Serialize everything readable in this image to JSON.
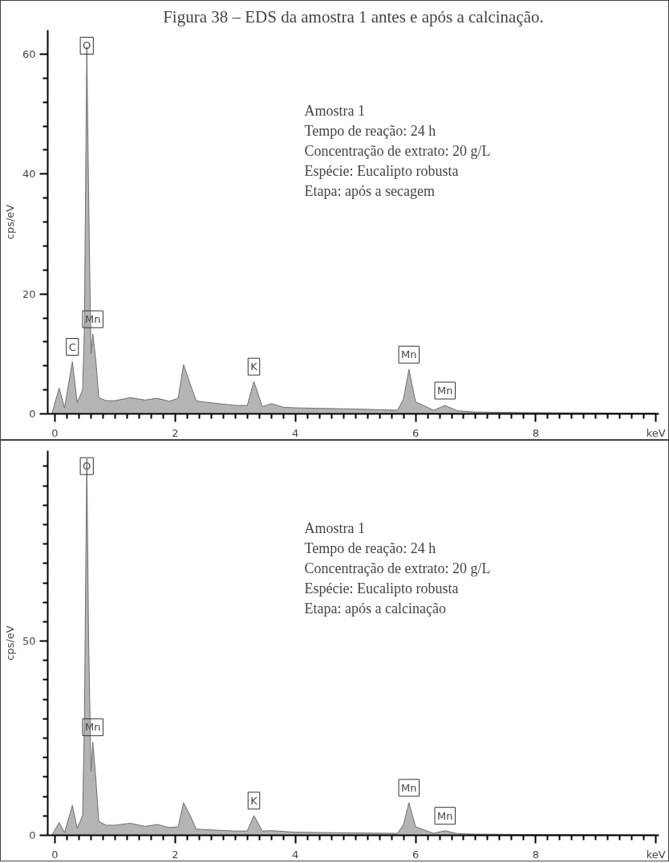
{
  "chart_data": [
    {
      "type": "area",
      "title": "Figura 38 – EDS da amostra 1 antes e após a calcinação.",
      "ylabel": "cps/eV",
      "x": [
        -0.05,
        0.07,
        0.16,
        0.29,
        0.37,
        0.46,
        0.49,
        0.53,
        0.56,
        0.6,
        0.63,
        0.68,
        0.73,
        0.85,
        1.0,
        1.25,
        1.5,
        1.7,
        1.9,
        2.05,
        2.14,
        2.25,
        2.35,
        2.45,
        3.0,
        3.2,
        3.31,
        3.45,
        3.6,
        3.8,
        4.0,
        5.0,
        5.7,
        5.8,
        5.89,
        6.0,
        6.3,
        6.49,
        6.7,
        7.0,
        8.0,
        10.0
      ],
      "series": [
        {
          "color": "#b4b4b4",
          "values": [
            0,
            4.3,
            1.0,
            8.7,
            1.9,
            4,
            14.2,
            61.2,
            37,
            10,
            13.3,
            8.9,
            2.7,
            2.2,
            2.2,
            2.7,
            2.3,
            2.6,
            2.1,
            2.6,
            8.2,
            5,
            2.2,
            2.0,
            1.4,
            1.4,
            5.4,
            1.2,
            1.7,
            1.1,
            1.0,
            0.8,
            0.6,
            2.5,
            7.4,
            2.0,
            0.6,
            1.4,
            0.5,
            0.3,
            0.2,
            0.1
          ]
        }
      ],
      "xlim": [
        -0.12,
        10.05
      ],
      "ylim": [
        0,
        64
      ],
      "xticks": [
        0,
        2,
        4,
        6,
        8,
        {
          "value": 10,
          "label": "keV"
        }
      ],
      "yticks": [
        0,
        20,
        40,
        60
      ],
      "grid": false,
      "annotations": [
        {
          "text": "C",
          "x": 0.29,
          "y": 8.7
        },
        {
          "text": "O",
          "x": 0.53,
          "y": 61.2
        },
        {
          "text": "Mn",
          "x": 0.63,
          "y": 13.3
        },
        {
          "text": "K",
          "x": 3.31,
          "y": 5.4
        },
        {
          "text": "Mn",
          "x": 5.89,
          "y": 7.4
        },
        {
          "text": "Mn",
          "x": 6.49,
          "y": 1.4
        },
        "Amostra 1",
        "Tempo de reação: 24 h",
        "Concentração de extrato: 20 g/L",
        "Espécie: Eucalipto robusta",
        "Etapa: após a secagem"
      ]
    },
    {
      "type": "area",
      "ylabel": "cps/eV",
      "x": [
        -0.05,
        0.07,
        0.16,
        0.29,
        0.37,
        0.46,
        0.49,
        0.53,
        0.56,
        0.6,
        0.63,
        0.68,
        0.73,
        0.85,
        1.0,
        1.25,
        1.5,
        1.7,
        1.9,
        2.05,
        2.14,
        2.25,
        2.35,
        2.45,
        3.0,
        3.2,
        3.31,
        3.45,
        3.6,
        4.0,
        5.0,
        5.7,
        5.8,
        5.89,
        6.0,
        6.3,
        6.49,
        6.7,
        7.0,
        8.0,
        10.0
      ],
      "series": [
        {
          "color": "#b4b4b4",
          "values": [
            0,
            3.3,
            0.7,
            7.7,
            1.8,
            5.1,
            29,
            97,
            51,
            16.4,
            24,
            14.6,
            3.6,
            2.6,
            2.6,
            3.1,
            2.3,
            2.8,
            2.0,
            2.2,
            8.4,
            5.1,
            1.6,
            1.5,
            1.1,
            1.1,
            5.1,
            1.1,
            1.2,
            0.8,
            0.6,
            0.5,
            2.8,
            8.4,
            2.2,
            0.5,
            1.2,
            0.4,
            0.3,
            0.2,
            0.1
          ]
        }
      ],
      "xlim": [
        -0.12,
        10.05
      ],
      "ylim": [
        0,
        99
      ],
      "xticks": [
        0,
        2,
        4,
        6,
        8,
        {
          "value": 10,
          "label": "keV"
        }
      ],
      "yticks": [
        0,
        50
      ],
      "grid": false,
      "annotations": [
        {
          "text": "O",
          "x": 0.53,
          "y": 97
        },
        {
          "text": "Mn",
          "x": 0.63,
          "y": 24
        },
        {
          "text": "K",
          "x": 3.31,
          "y": 5.1
        },
        {
          "text": "Mn",
          "x": 5.89,
          "y": 8.4
        },
        {
          "text": "Mn",
          "x": 6.49,
          "y": 1.2
        },
        "Amostra 1",
        "Tempo de reação: 24 h",
        "Concentração de extrato: 20 g/L",
        "Espécie: Eucalipto robusta",
        "Etapa: após a calcinação"
      ]
    }
  ]
}
